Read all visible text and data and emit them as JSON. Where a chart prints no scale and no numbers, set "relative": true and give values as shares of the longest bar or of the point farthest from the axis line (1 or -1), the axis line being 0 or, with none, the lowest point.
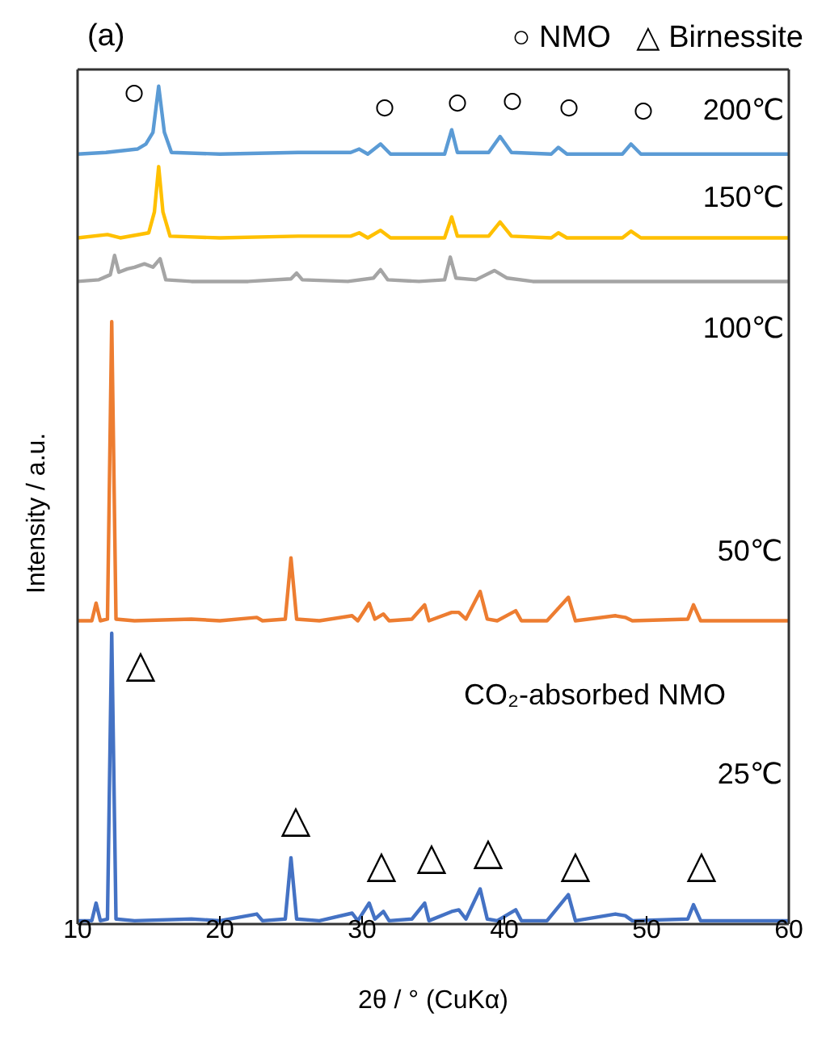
{
  "chart_data": {
    "type": "line",
    "relative": true,
    "title": "(a)",
    "xlabel": "2θ / °  (CuKα)",
    "ylabel": "Intensity / a.u.",
    "xlim": [
      10,
      60
    ],
    "xticks": [
      10,
      20,
      30,
      40,
      50,
      60
    ],
    "line_style": "solid",
    "series": [
      {
        "color": "#4472c4",
        "x": [
          10,
          11.0,
          11.3,
          11.6,
          12.1,
          12.4,
          12.7,
          14,
          18,
          20,
          22.6,
          23,
          24.6,
          25.0,
          25.4,
          27,
          29.3,
          29.7,
          30.5,
          30.9,
          31.5,
          31.9,
          33.5,
          34.4,
          34.7,
          36.3,
          36.8,
          37.3,
          38.3,
          38.8,
          39.5,
          40.8,
          41.2,
          43,
          44.5,
          45,
          47.8,
          48.5,
          49,
          52.9,
          53.3,
          53.8,
          57,
          60
        ],
        "values": [
          0.004,
          0.004,
          0.025,
          0.004,
          0.006,
          0.347,
          0.006,
          0.004,
          0.006,
          0.004,
          0.012,
          0.004,
          0.006,
          0.079,
          0.006,
          0.004,
          0.013,
          0.004,
          0.025,
          0.006,
          0.015,
          0.004,
          0.006,
          0.025,
          0.004,
          0.015,
          0.017,
          0.006,
          0.042,
          0.006,
          0.004,
          0.017,
          0.004,
          0.004,
          0.035,
          0.004,
          0.012,
          0.01,
          0.004,
          0.006,
          0.023,
          0.004,
          0.004,
          0.004
        ]
      },
      {
        "color": "#ed7d31",
        "x": [
          10,
          11.0,
          11.3,
          11.6,
          12.1,
          12.4,
          12.7,
          14,
          18,
          20,
          22.6,
          23,
          24.6,
          25.0,
          25.4,
          27,
          29.3,
          29.7,
          30.5,
          30.9,
          31.5,
          31.9,
          33.5,
          34.4,
          34.7,
          36.3,
          36.8,
          37.3,
          38.3,
          38.8,
          39.5,
          40.8,
          41.2,
          43,
          44.5,
          45,
          47.8,
          48.5,
          49,
          52.9,
          53.3,
          53.8,
          57,
          60
        ],
        "values": [
          0.362,
          0.362,
          0.383,
          0.362,
          0.364,
          0.719,
          0.364,
          0.362,
          0.364,
          0.362,
          0.366,
          0.362,
          0.364,
          0.437,
          0.364,
          0.362,
          0.368,
          0.362,
          0.383,
          0.364,
          0.37,
          0.362,
          0.364,
          0.381,
          0.362,
          0.372,
          0.372,
          0.364,
          0.397,
          0.364,
          0.362,
          0.374,
          0.362,
          0.362,
          0.39,
          0.362,
          0.368,
          0.366,
          0.362,
          0.364,
          0.381,
          0.362,
          0.362,
          0.362
        ]
      },
      {
        "color": "#a5a5a5",
        "x": [
          10,
          11.5,
          12.3,
          12.6,
          12.9,
          13.5,
          14.0,
          14.7,
          15.3,
          15.8,
          16.2,
          18,
          22,
          25.0,
          25.4,
          25.8,
          29,
          30.8,
          31.3,
          31.8,
          34,
          35.8,
          36.2,
          36.6,
          38,
          39.3,
          40.2,
          42,
          45,
          50,
          55,
          60
        ],
        "values": [
          0.767,
          0.769,
          0.775,
          0.798,
          0.778,
          0.782,
          0.784,
          0.788,
          0.784,
          0.794,
          0.769,
          0.767,
          0.767,
          0.77,
          0.777,
          0.769,
          0.767,
          0.771,
          0.781,
          0.769,
          0.767,
          0.769,
          0.796,
          0.771,
          0.769,
          0.78,
          0.771,
          0.767,
          0.767,
          0.767,
          0.767,
          0.767
        ]
      },
      {
        "color": "#ffc000",
        "x": [
          10,
          12.1,
          13,
          15.0,
          15.4,
          15.7,
          16.0,
          16.5,
          20,
          25.5,
          29.2,
          29.8,
          30.4,
          31.3,
          32,
          35.8,
          36.3,
          36.7,
          38.9,
          39.7,
          40.5,
          43.3,
          43.8,
          44.4,
          48.3,
          48.9,
          49.6,
          55,
          60
        ],
        "values": [
          0.819,
          0.823,
          0.819,
          0.825,
          0.85,
          0.904,
          0.85,
          0.821,
          0.819,
          0.821,
          0.821,
          0.825,
          0.819,
          0.828,
          0.819,
          0.819,
          0.844,
          0.821,
          0.821,
          0.838,
          0.821,
          0.819,
          0.825,
          0.819,
          0.819,
          0.827,
          0.819,
          0.819,
          0.819
        ]
      },
      {
        "color": "#5b9bd5",
        "x": [
          10,
          12,
          14.2,
          14.8,
          15.3,
          15.7,
          16.1,
          16.6,
          20,
          25.5,
          29.2,
          29.8,
          30.4,
          31.3,
          32,
          35.8,
          36.3,
          36.7,
          38.9,
          39.7,
          40.5,
          43.3,
          43.8,
          44.4,
          48.3,
          48.9,
          49.6,
          55,
          60
        ],
        "values": [
          0.919,
          0.921,
          0.925,
          0.931,
          0.945,
          1,
          0.945,
          0.921,
          0.919,
          0.921,
          0.921,
          0.925,
          0.919,
          0.931,
          0.919,
          0.919,
          0.948,
          0.921,
          0.921,
          0.94,
          0.921,
          0.919,
          0.927,
          0.919,
          0.919,
          0.931,
          0.919,
          0.919,
          0.919
        ]
      }
    ],
    "annotations": [
      "○ NMO   △ Birnessite",
      "200℃",
      "150℃",
      "100℃",
      "50℃",
      "CO₂-absorbed NMO",
      "25℃",
      "○",
      "○",
      "○",
      "○",
      "○",
      "○",
      "△",
      "△",
      "△",
      "△",
      "△",
      "△",
      "△"
    ]
  }
}
